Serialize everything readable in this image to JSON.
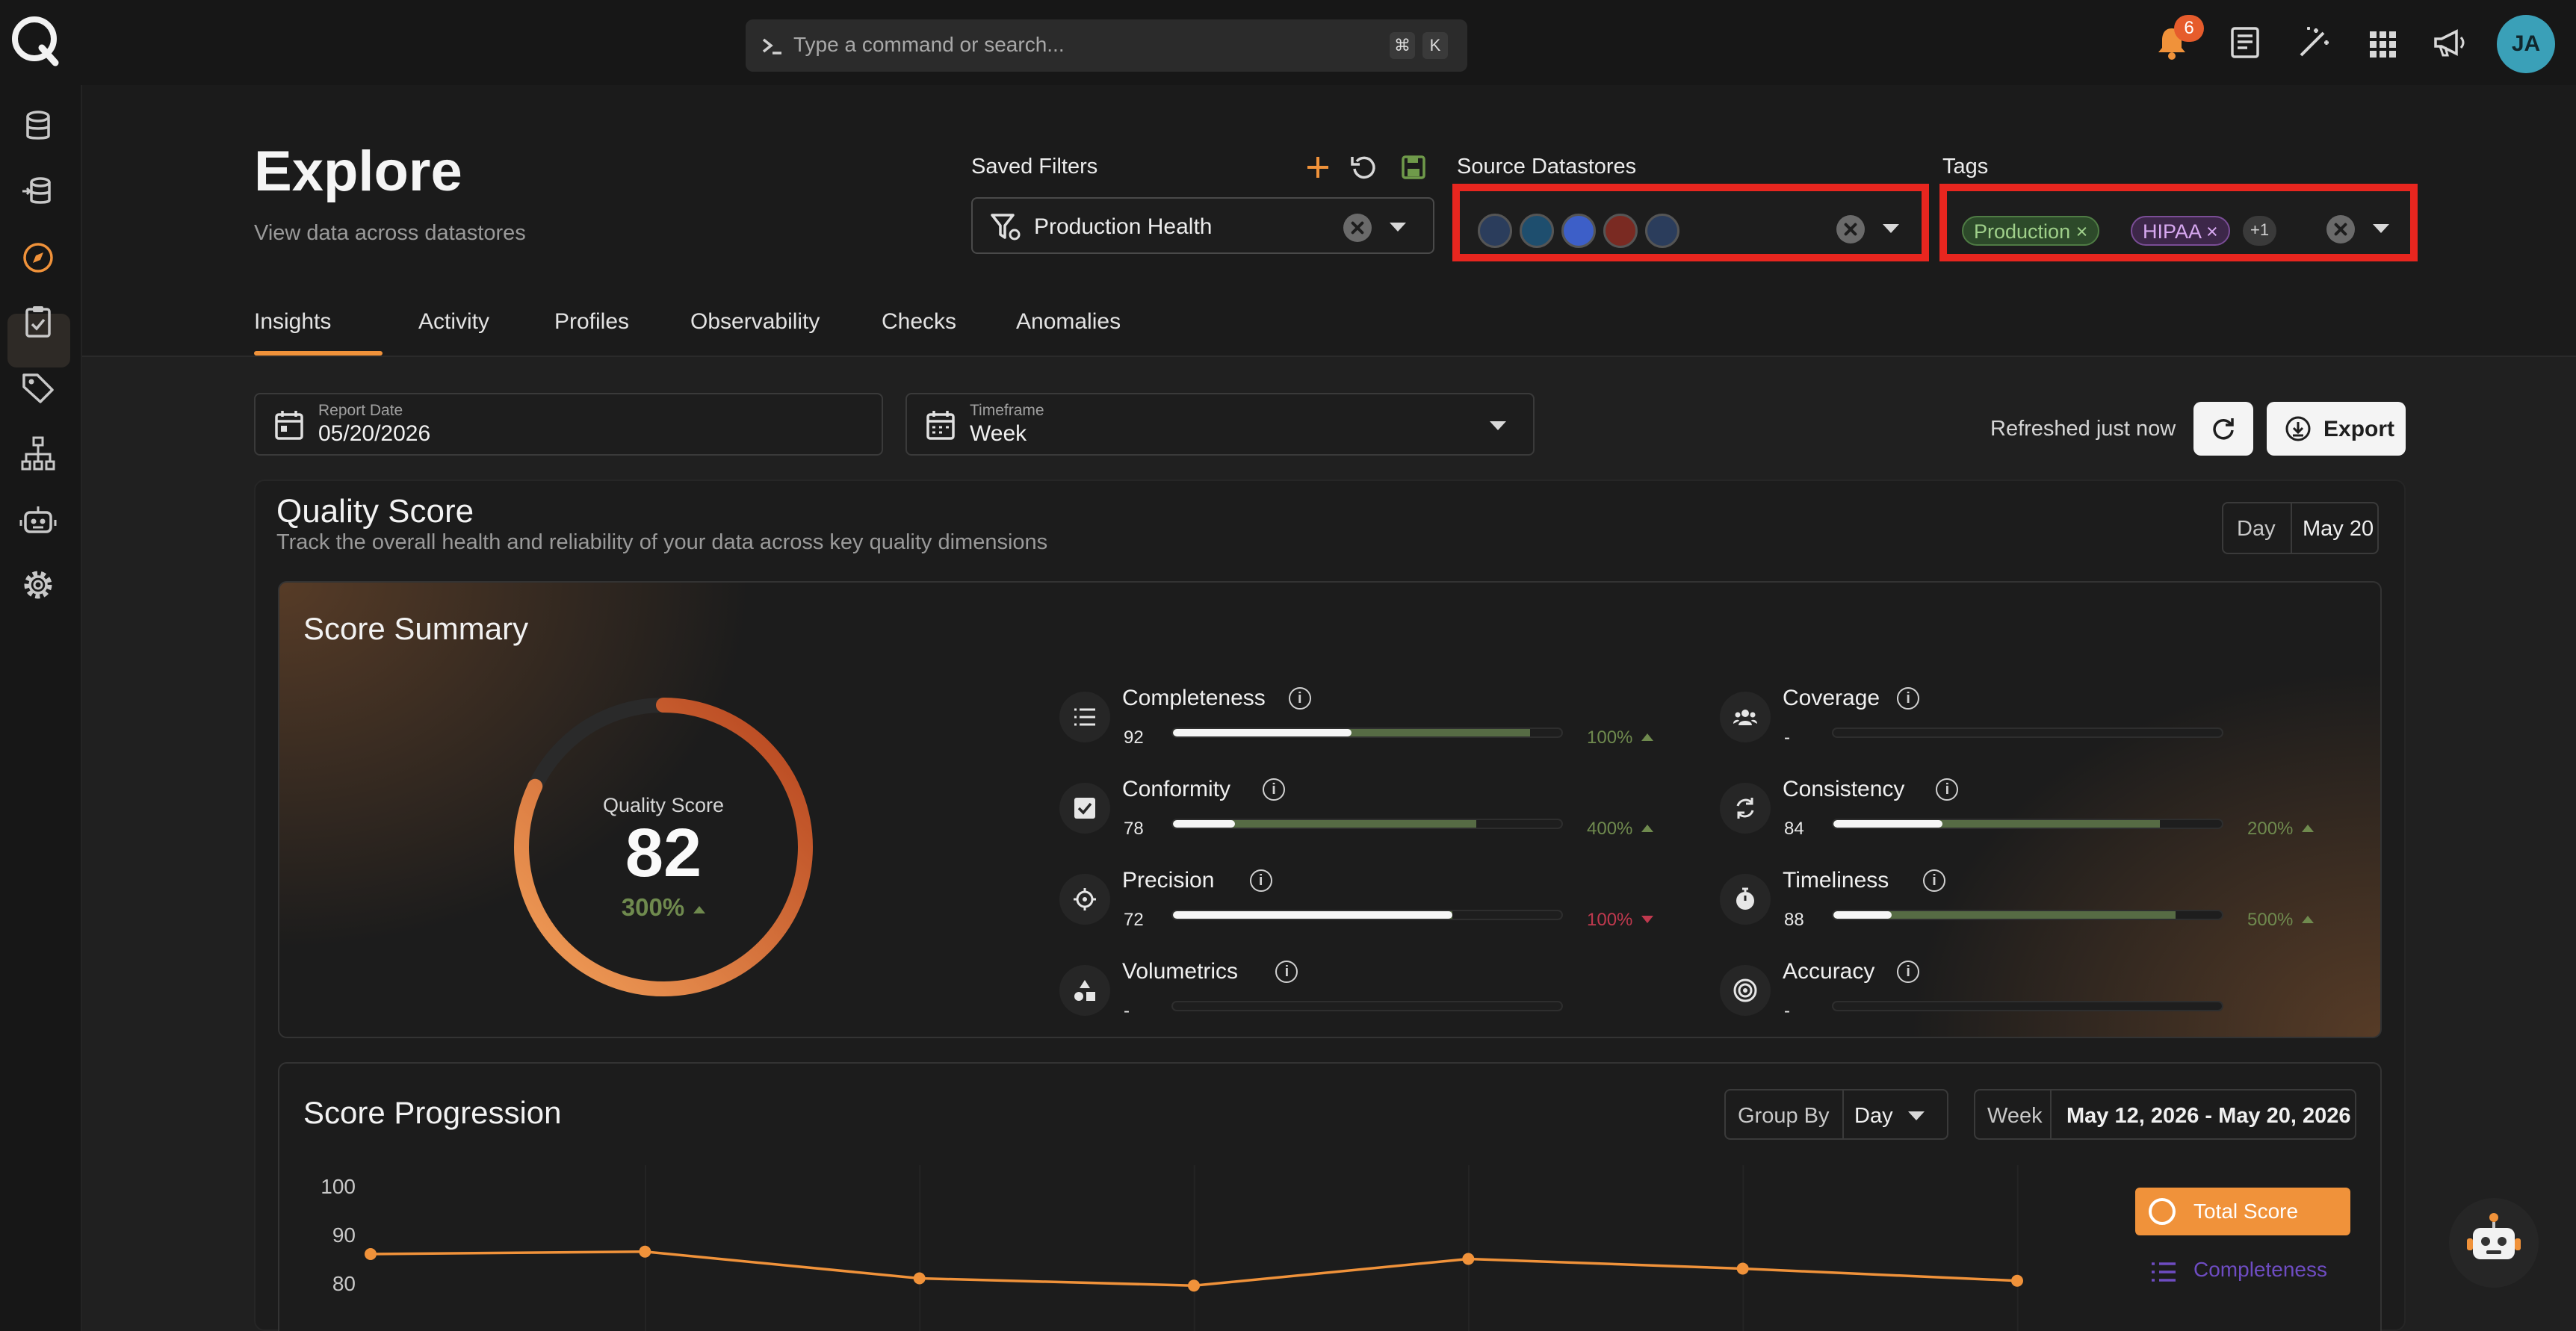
{
  "command_bar": {
    "placeholder": "Type a command or search...",
    "key1": "⌘",
    "key2": "K"
  },
  "notifications": {
    "count": "6"
  },
  "user": {
    "initials": "JA"
  },
  "page": {
    "title": "Explore",
    "subtitle": "View data across datastores"
  },
  "filters": {
    "saved_label": "Saved Filters",
    "saved_value": "Production Health",
    "source_label": "Source Datastores",
    "tags_label": "Tags",
    "tags": [
      "Production",
      "HIPAA"
    ],
    "tags_more": "+1"
  },
  "tabs": [
    "Insights",
    "Activity",
    "Profiles",
    "Observability",
    "Checks",
    "Anomalies"
  ],
  "report": {
    "date_label": "Report Date",
    "date_value": "05/20/2026",
    "timeframe_label": "Timeframe",
    "timeframe_value": "Week",
    "refreshed": "Refreshed just now",
    "export_label": "Export"
  },
  "quality": {
    "title": "Quality Score",
    "subtitle": "Track the overall health and reliability of your data across key quality dimensions",
    "day_label": "Day",
    "day_value": "May 20"
  },
  "summary": {
    "title": "Score Summary",
    "gauge_label": "Quality Score",
    "score": "82",
    "score_fraction": 0.82,
    "delta": "300%",
    "metrics": [
      {
        "name": "Completeness",
        "value": "92",
        "fill": 0.46,
        "prev": 0.92,
        "delta": "100%",
        "dir": "up",
        "icon": "list-icon"
      },
      {
        "name": "Coverage",
        "value": "-",
        "fill": 0,
        "prev": 0,
        "delta": "",
        "dir": "",
        "icon": "people-icon"
      },
      {
        "name": "Conformity",
        "value": "78",
        "fill": 0.16,
        "prev": 0.78,
        "delta": "400%",
        "dir": "up",
        "icon": "checkbox-icon"
      },
      {
        "name": "Consistency",
        "value": "84",
        "fill": 0.28,
        "prev": 0.84,
        "delta": "200%",
        "dir": "up",
        "icon": "sync-icon"
      },
      {
        "name": "Precision",
        "value": "72",
        "fill": 0.72,
        "prev": 0.72,
        "delta": "100%",
        "dir": "down",
        "icon": "crosshair-icon"
      },
      {
        "name": "Timeliness",
        "value": "88",
        "fill": 0.15,
        "prev": 0.88,
        "delta": "500%",
        "dir": "up",
        "icon": "stopwatch-icon"
      },
      {
        "name": "Volumetrics",
        "value": "-",
        "fill": 0,
        "prev": 0,
        "delta": "",
        "dir": "",
        "icon": "shapes-icon"
      },
      {
        "name": "Accuracy",
        "value": "-",
        "fill": 0,
        "prev": 0,
        "delta": "",
        "dir": "",
        "icon": "target-icon"
      }
    ]
  },
  "progression": {
    "title": "Score Progression",
    "group_label": "Group By",
    "group_value": "Day",
    "week_label": "Week",
    "week_range": "May 12, 2026 - May 20, 2026"
  },
  "colors": {
    "accent": "#f0923a",
    "positive": "#6f8a4e",
    "negative": "#c0394e",
    "legend_purple": "#6e4cc2"
  },
  "chart_data": {
    "type": "line",
    "yticks": [
      "100",
      "90",
      "80"
    ],
    "ylim": [
      70,
      100
    ],
    "x": [
      0,
      1,
      2,
      3,
      4,
      5,
      6
    ],
    "series": [
      {
        "name": "Total Score",
        "values": [
          86,
          86.5,
          81,
          79.5,
          85,
          83,
          80.5
        ]
      }
    ],
    "legend": [
      "Total Score",
      "Completeness"
    ]
  }
}
